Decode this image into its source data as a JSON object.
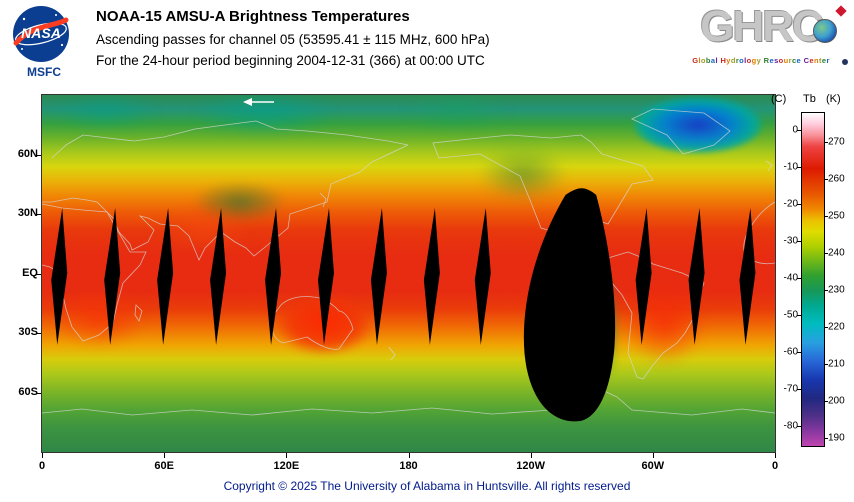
{
  "header": {
    "nasa": {
      "wordmark": "NASA",
      "center": "MSFC"
    },
    "ghrc": {
      "letters": "GHRC",
      "tagline": "Global Hydrology Resource Center",
      "tagline_palette": [
        "#c62828",
        "#e07b00",
        "#9e9d24",
        "#2e7d32",
        "#1565c0",
        "#6a1b9a"
      ]
    }
  },
  "footer": {
    "copyright": "Copyright © 2025 The University of Alabama in Huntsville.  All rights reserved"
  },
  "chart_data": {
    "type": "heatmap",
    "title": "NOAA-15 AMSU-A Brightness Temperatures",
    "subtitle": "Ascending passes for channel 05 (53595.41 ± 115 MHz, 600 hPa)",
    "period": "For the 24-hour period beginning 2004-12-31 (366) at 00:00 UTC",
    "projection": "equirectangular world map, longitude 0E to 360E left to right (Pacific-centered, 180 at middle), latitude 90N top to 90S bottom",
    "x_axis": {
      "tick_labels": [
        "0",
        "60E",
        "120E",
        "180",
        "120W",
        "60W",
        "0"
      ],
      "tick_lons_deg": [
        0,
        60,
        120,
        180,
        240,
        300,
        360
      ]
    },
    "y_axis": {
      "tick_labels": [
        "60N",
        "30N",
        "EQ",
        "30S",
        "60S"
      ],
      "tick_lats_deg": [
        60,
        30,
        0,
        -30,
        -60
      ]
    },
    "colorbar": {
      "title_c": "(C)",
      "title_var": "Tb",
      "title_k": "(K)",
      "c_ticks": [
        0,
        -10,
        -20,
        -30,
        -40,
        -50,
        -60,
        -70,
        -80
      ],
      "k_ticks": [
        270,
        260,
        250,
        240,
        230,
        220,
        210,
        200,
        190
      ],
      "k_min": 188,
      "k_max": 278,
      "stops": [
        {
          "k": 278,
          "color": "#ffffff"
        },
        {
          "k": 275,
          "color": "#ffccdd"
        },
        {
          "k": 272,
          "color": "#f89098"
        },
        {
          "k": 269,
          "color": "#ee4444"
        },
        {
          "k": 263,
          "color": "#dd1a00"
        },
        {
          "k": 256,
          "color": "#e85800"
        },
        {
          "k": 252,
          "color": "#f08800"
        },
        {
          "k": 249,
          "color": "#ecc000"
        },
        {
          "k": 246,
          "color": "#e0dc00"
        },
        {
          "k": 242,
          "color": "#b0d000"
        },
        {
          "k": 238,
          "color": "#70b818"
        },
        {
          "k": 234,
          "color": "#30a030"
        },
        {
          "k": 230,
          "color": "#189858"
        },
        {
          "k": 226,
          "color": "#00a890"
        },
        {
          "k": 221,
          "color": "#00bcc0"
        },
        {
          "k": 216,
          "color": "#28a0e0"
        },
        {
          "k": 211,
          "color": "#2868d8"
        },
        {
          "k": 206,
          "color": "#1838b0"
        },
        {
          "k": 201,
          "color": "#202880"
        },
        {
          "k": 196,
          "color": "#503088"
        },
        {
          "k": 192,
          "color": "#8838a0"
        },
        {
          "k": 188,
          "color": "#c044b0"
        }
      ]
    },
    "values_by_latitude_k": [
      {
        "lat_deg": 85,
        "tb_k": 233
      },
      {
        "lat_deg": 70,
        "tb_k": 238
      },
      {
        "lat_deg": 60,
        "tb_k": 243
      },
      {
        "lat_deg": 50,
        "tb_k": 247
      },
      {
        "lat_deg": 40,
        "tb_k": 251
      },
      {
        "lat_deg": 30,
        "tb_k": 255
      },
      {
        "lat_deg": 20,
        "tb_k": 259
      },
      {
        "lat_deg": 0,
        "tb_k": 261
      },
      {
        "lat_deg": -20,
        "tb_k": 258
      },
      {
        "lat_deg": -30,
        "tb_k": 254
      },
      {
        "lat_deg": -45,
        "tb_k": 248
      },
      {
        "lat_deg": -60,
        "tb_k": 243
      },
      {
        "lat_deg": -75,
        "tb_k": 240
      },
      {
        "lat_deg": -85,
        "tb_k": 241
      }
    ],
    "anomalies": [
      {
        "name": "cold core over Greenland",
        "tb_k": 205
      },
      {
        "name": "warm cores over Australia, southern Africa and South America",
        "tb_k": 263
      }
    ],
    "missing_data": {
      "color": "#000000",
      "description": "black sliver gaps between successive ascending swaths (~26 deg longitude spacing) between ~32N and ~35S, plus one large gap over the eastern Pacific / South America sector",
      "gap_center_lons_deg": [
        7,
        33,
        59,
        85,
        112,
        138,
        164,
        190,
        215,
        294,
        320,
        345
      ],
      "large_gap": {
        "lon_from_deg": 235,
        "lon_to_deg": 283,
        "lat_from_deg": 32,
        "lat_to_deg": -72
      }
    },
    "swath_arrow": {
      "symbol": "←",
      "lon_deg": 106
    }
  }
}
